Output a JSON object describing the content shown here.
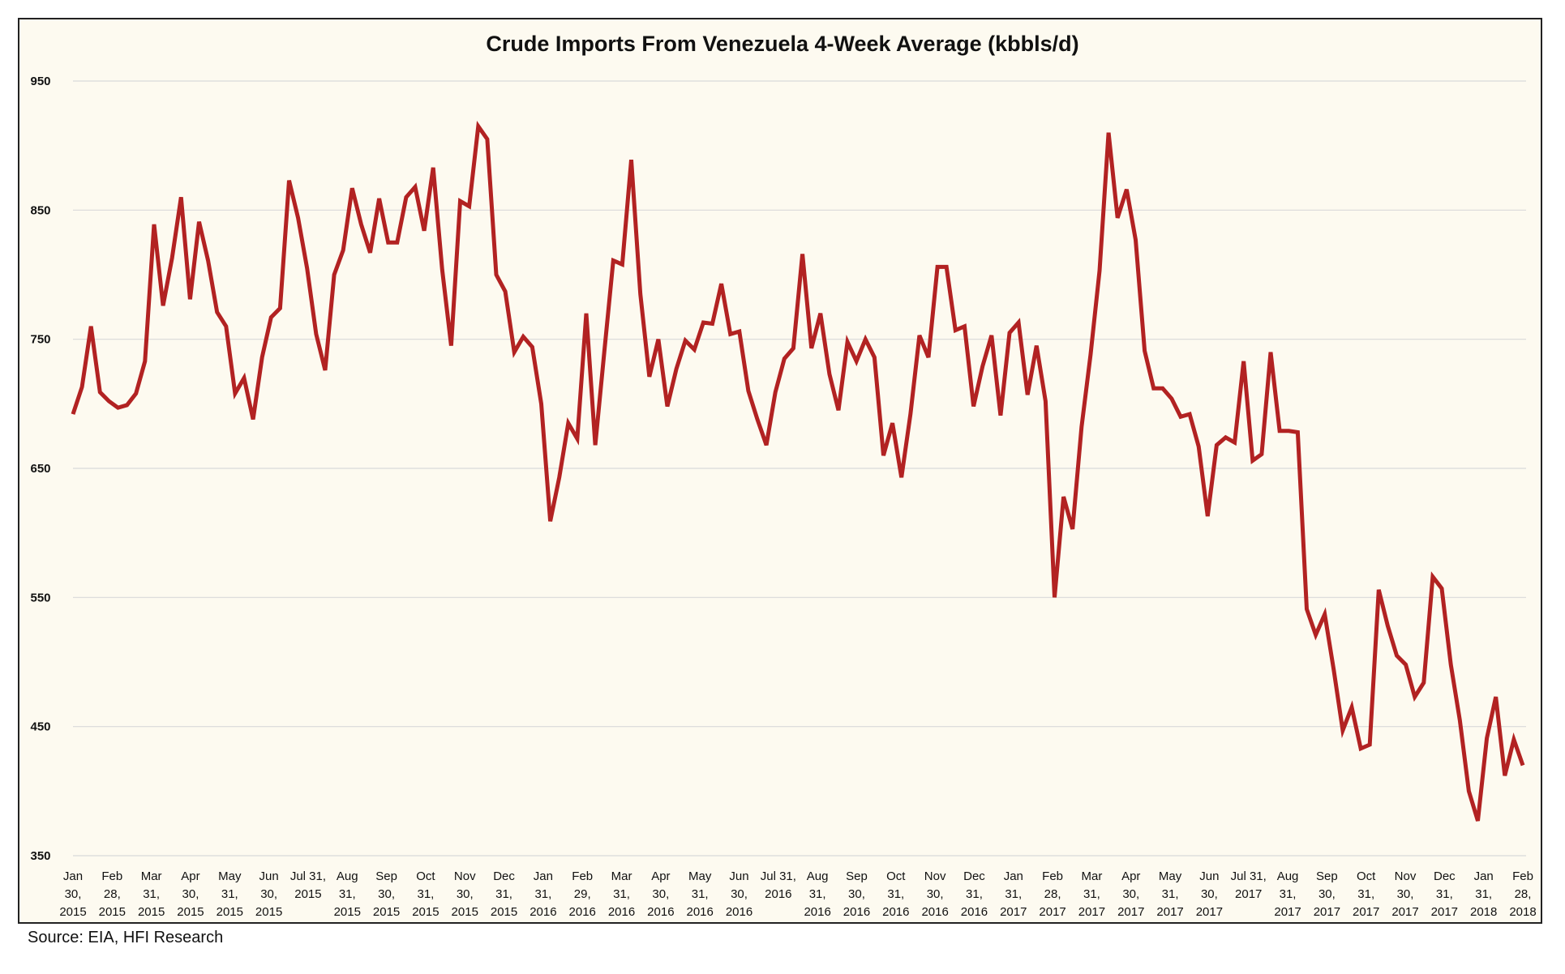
{
  "source": "Source: EIA, HFI Research",
  "chart_data": {
    "type": "line",
    "title": "Crude Imports From Venezuela 4-Week Average (kbbls/d)",
    "xlabel": "",
    "ylabel": "",
    "ylim": [
      350,
      950
    ],
    "yticks": [
      350,
      450,
      550,
      650,
      750,
      850,
      950
    ],
    "grid": true,
    "legend": "none",
    "line_color": "#b22222",
    "x_ticks": [
      [
        "Jan",
        "30,",
        "2015"
      ],
      [
        "Feb",
        "28,",
        "2015"
      ],
      [
        "Mar",
        "31,",
        "2015"
      ],
      [
        "Apr",
        "30,",
        "2015"
      ],
      [
        "May",
        "31,",
        "2015"
      ],
      [
        "Jun",
        "30,",
        "2015"
      ],
      [
        "Jul 31,",
        "2015"
      ],
      [
        "Aug",
        "31,",
        "2015"
      ],
      [
        "Sep",
        "30,",
        "2015"
      ],
      [
        "Oct",
        "31,",
        "2015"
      ],
      [
        "Nov",
        "30,",
        "2015"
      ],
      [
        "Dec",
        "31,",
        "2015"
      ],
      [
        "Jan",
        "31,",
        "2016"
      ],
      [
        "Feb",
        "29,",
        "2016"
      ],
      [
        "Mar",
        "31,",
        "2016"
      ],
      [
        "Apr",
        "30,",
        "2016"
      ],
      [
        "May",
        "31,",
        "2016"
      ],
      [
        "Jun",
        "30,",
        "2016"
      ],
      [
        "Jul 31,",
        "2016"
      ],
      [
        "Aug",
        "31,",
        "2016"
      ],
      [
        "Sep",
        "30,",
        "2016"
      ],
      [
        "Oct",
        "31,",
        "2016"
      ],
      [
        "Nov",
        "30,",
        "2016"
      ],
      [
        "Dec",
        "31,",
        "2016"
      ],
      [
        "Jan",
        "31,",
        "2017"
      ],
      [
        "Feb",
        "28,",
        "2017"
      ],
      [
        "Mar",
        "31,",
        "2017"
      ],
      [
        "Apr",
        "30,",
        "2017"
      ],
      [
        "May",
        "31,",
        "2017"
      ],
      [
        "Jun",
        "30,",
        "2017"
      ],
      [
        "Jul 31,",
        "2017"
      ],
      [
        "Aug",
        "31,",
        "2017"
      ],
      [
        "Sep",
        "30,",
        "2017"
      ],
      [
        "Oct",
        "31,",
        "2017"
      ],
      [
        "Nov",
        "30,",
        "2017"
      ],
      [
        "Dec",
        "31,",
        "2017"
      ],
      [
        "Jan",
        "31,",
        "2018"
      ],
      [
        "Feb",
        "28,",
        "2018"
      ]
    ],
    "series": [
      {
        "values": [
          692,
          713,
          760,
          709,
          702,
          697,
          699,
          708,
          733,
          839,
          776,
          813,
          860,
          781,
          841,
          811,
          771,
          760,
          708,
          720,
          688,
          736,
          767,
          774,
          873,
          844,
          805,
          754,
          726,
          800,
          819,
          867,
          839,
          817,
          859,
          825,
          825,
          860,
          868,
          834,
          883,
          804,
          745,
          857,
          853,
          915,
          905,
          800,
          787,
          740,
          752,
          744,
          700,
          609,
          643,
          685,
          673,
          770,
          668,
          740,
          811,
          808,
          889,
          785,
          721,
          750,
          698,
          727,
          749,
          742,
          763,
          762,
          793,
          754,
          756,
          710,
          688,
          668,
          709,
          735,
          743,
          816,
          743,
          770,
          723,
          695,
          748,
          733,
          750,
          736,
          660,
          685,
          643,
          692,
          753,
          736,
          806,
          806,
          757,
          760,
          698,
          729,
          753,
          691,
          755,
          763,
          707,
          745,
          702,
          550,
          628,
          603,
          682,
          738,
          803,
          910,
          844,
          866,
          827,
          741,
          712,
          712,
          704,
          690,
          692,
          667,
          613,
          668,
          674,
          670,
          733,
          656,
          661,
          740,
          679,
          679,
          678,
          541,
          521,
          537,
          494,
          447,
          465,
          433,
          436,
          556,
          528,
          505,
          498,
          473,
          484,
          566,
          557,
          498,
          455,
          400,
          377,
          441,
          473,
          412,
          440,
          420
        ]
      }
    ]
  }
}
